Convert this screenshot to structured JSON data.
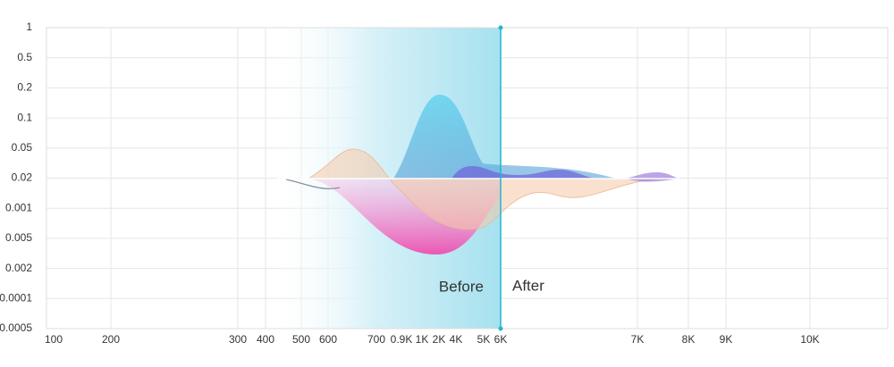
{
  "y_axis_labels": [
    "1",
    "0.5",
    "0.2",
    "0.1",
    "0.05",
    "0.02",
    "0.001",
    "0.005",
    "0.002",
    "0.0001",
    "0.0005"
  ],
  "x_axis_labels": [
    "100",
    "200",
    "300",
    "400",
    "500",
    "600",
    "700",
    "0.9K",
    "1K",
    "2K",
    "4K",
    "5K",
    "6K",
    "7K",
    "8K",
    "9K",
    "10K"
  ],
  "divider_labels": {
    "before": "Before",
    "after": "After"
  }
}
